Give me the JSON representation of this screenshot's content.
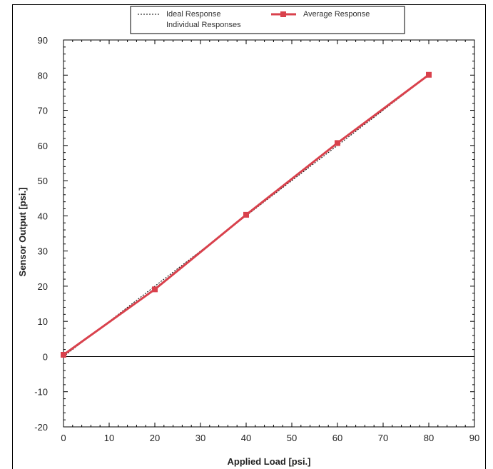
{
  "chart_data": {
    "type": "line",
    "xlabel": "Applied Load [psi.]",
    "ylabel": "Sensor Output [psi.]",
    "xlim": [
      0,
      90
    ],
    "ylim": [
      -20,
      90
    ],
    "x_ticks": [
      "0",
      "10",
      "20",
      "30",
      "40",
      "50",
      "60",
      "70",
      "80",
      "90"
    ],
    "y_ticks": [
      "90",
      "80",
      "70",
      "60",
      "50",
      "40",
      "30",
      "20",
      "10",
      "0",
      "-10",
      "-20"
    ],
    "grid": false,
    "legend_position": "top",
    "series": [
      {
        "name": "Ideal Response",
        "style": "dotted",
        "color": "#000000",
        "x": [
          0,
          80
        ],
        "y": [
          0,
          80
        ]
      },
      {
        "name": "Individual Responses",
        "style": "solid",
        "color": "#777777",
        "x": [
          0,
          20,
          40,
          60,
          80
        ],
        "y": [
          0.5,
          19.3,
          40.4,
          60.8,
          80.1
        ]
      },
      {
        "name": "Average Response",
        "style": "solid-square-markers",
        "color": "#d9414c",
        "x": [
          0,
          20,
          40,
          60,
          80
        ],
        "y": [
          0.5,
          19.1,
          40.3,
          60.7,
          80.1
        ]
      }
    ],
    "reference_lines": [
      {
        "axis": "y",
        "value": 0,
        "color": "#000000"
      }
    ]
  }
}
